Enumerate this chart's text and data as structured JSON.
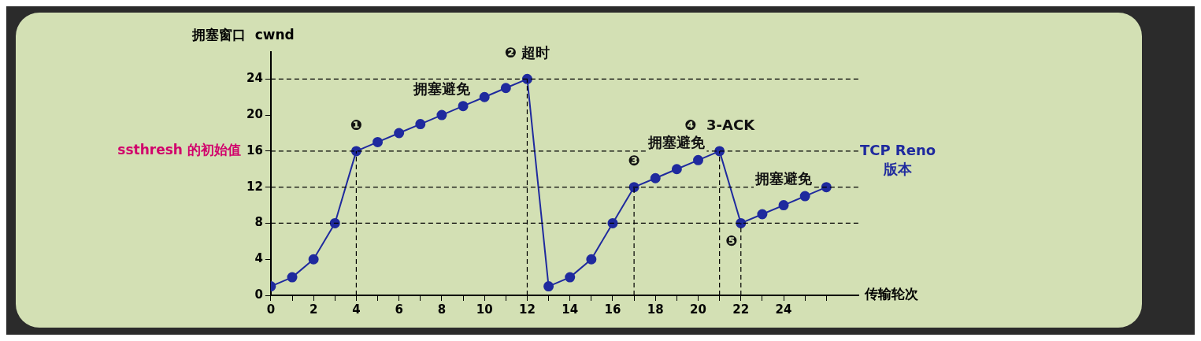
{
  "chart_data": {
    "type": "line",
    "xlabel": "传输轮次",
    "ylabel": "拥塞窗口  cwnd",
    "x": [
      0,
      1,
      2,
      3,
      4,
      5,
      6,
      7,
      8,
      9,
      10,
      11,
      12,
      13,
      14,
      15,
      16,
      17,
      18,
      19,
      20,
      21,
      22,
      23,
      24,
      25,
      26
    ],
    "series": [
      {
        "color": "#1f2a9e",
        "values": [
          1,
          2,
          4,
          8,
          16,
          17,
          18,
          19,
          20,
          21,
          22,
          23,
          24,
          1,
          2,
          4,
          8,
          12,
          13,
          14,
          15,
          16,
          8,
          9,
          10,
          11,
          12
        ]
      }
    ],
    "xlim": [
      0,
      27.5
    ],
    "xticks": [
      0,
      {
        "value": 1,
        "label": null
      },
      2,
      {
        "value": 3,
        "label": null
      },
      4,
      {
        "value": 5,
        "label": null
      },
      6,
      {
        "value": 7,
        "label": null
      },
      8,
      {
        "value": 9,
        "label": null
      },
      10,
      {
        "value": 11,
        "label": null
      },
      12,
      {
        "value": 13,
        "label": null
      },
      14,
      {
        "value": 15,
        "label": null
      },
      16,
      {
        "value": 17,
        "label": null
      },
      18,
      {
        "value": 19,
        "label": null
      },
      20,
      {
        "value": 21,
        "label": null
      },
      22,
      {
        "value": 23,
        "label": null
      },
      24,
      {
        "value": 25,
        "label": null
      },
      {
        "value": 26,
        "label": null
      }
    ],
    "ylim": [
      0,
      27
    ],
    "yticks": [
      0,
      4,
      8,
      12,
      16,
      20,
      24
    ],
    "marker": "circle",
    "line_style": "solid",
    "ref_lines": [
      {
        "axis": "y",
        "value": 24,
        "line_style": "dashed"
      },
      {
        "axis": "y",
        "value": 16,
        "label": "ssthresh 的初始值",
        "line_style": "dashed"
      },
      {
        "axis": "y",
        "value": 12,
        "line_style": "dashed"
      },
      {
        "axis": "y",
        "value": 8,
        "line_style": "dashed"
      },
      {
        "axis": "x",
        "value": 4,
        "line_style": "dashed"
      },
      {
        "axis": "x",
        "value": 12,
        "line_style": "dashed"
      },
      {
        "axis": "x",
        "value": 17,
        "line_style": "dashed"
      },
      {
        "axis": "x",
        "value": 21,
        "line_style": "dashed"
      },
      {
        "axis": "x",
        "value": 22,
        "line_style": "dashed"
      }
    ],
    "annotations": [
      {
        "text": "❶",
        "x": 4,
        "y": 16
      },
      {
        "text": "❷ 超时",
        "x": 12,
        "y": 24
      },
      {
        "text": "❸",
        "x": 17,
        "y": 12
      },
      {
        "text": "❹  3-ACK",
        "x": 21,
        "y": 16
      },
      {
        "text": "❺",
        "x": 22,
        "y": 8
      },
      {
        "text": "拥塞避免",
        "x": 8,
        "y": 20
      },
      {
        "text": "拥塞避免",
        "x": 19,
        "y": 14
      },
      {
        "text": "拥塞避免",
        "x": 24,
        "y": 10
      },
      "TCP Reno 版本"
    ]
  }
}
